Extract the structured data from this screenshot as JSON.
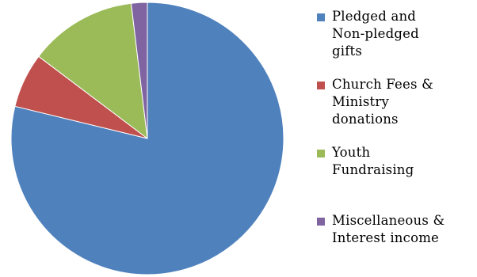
{
  "chart_data": {
    "type": "pie",
    "title": "",
    "categories": [
      "Pledged and\nNon-pledged\ngifts",
      "Church Fees &\nMinistry\ndonations",
      "Youth\nFundraising",
      "Miscellaneous &\nInterest income"
    ],
    "values": [
      78.8,
      6.5,
      12.8,
      1.9
    ],
    "unit": "%",
    "colors": [
      "#4F81BD",
      "#C0504D",
      "#9BBB59",
      "#8064A2"
    ],
    "legend_position": "right"
  }
}
